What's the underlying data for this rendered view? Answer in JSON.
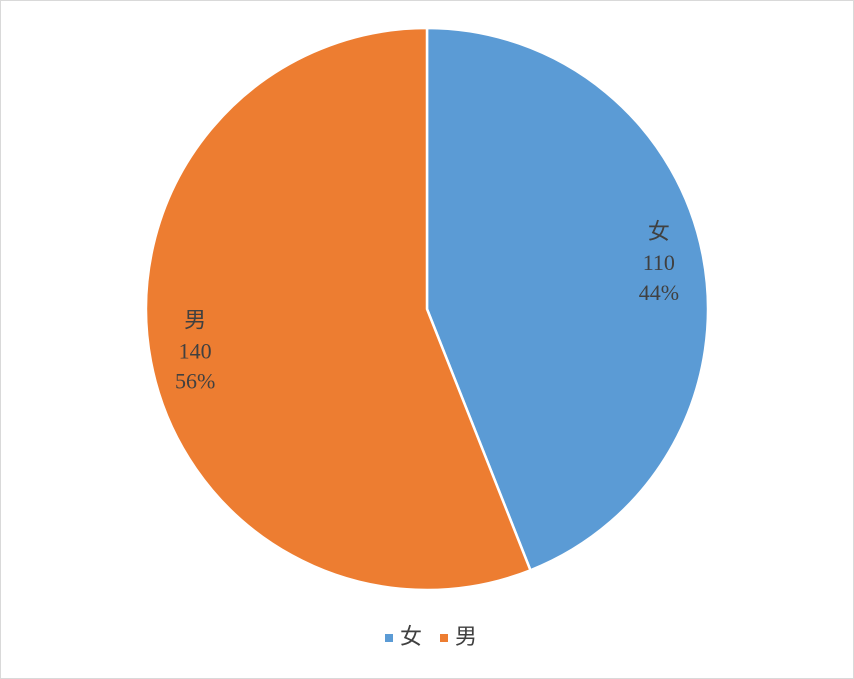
{
  "chart_data": {
    "type": "pie",
    "categories": [
      "女",
      "男"
    ],
    "values": [
      110,
      140
    ],
    "percent_labels": [
      "44%",
      "56%"
    ],
    "colors": [
      "#5b9bd5",
      "#ed7d31"
    ],
    "legend": "bottom"
  }
}
